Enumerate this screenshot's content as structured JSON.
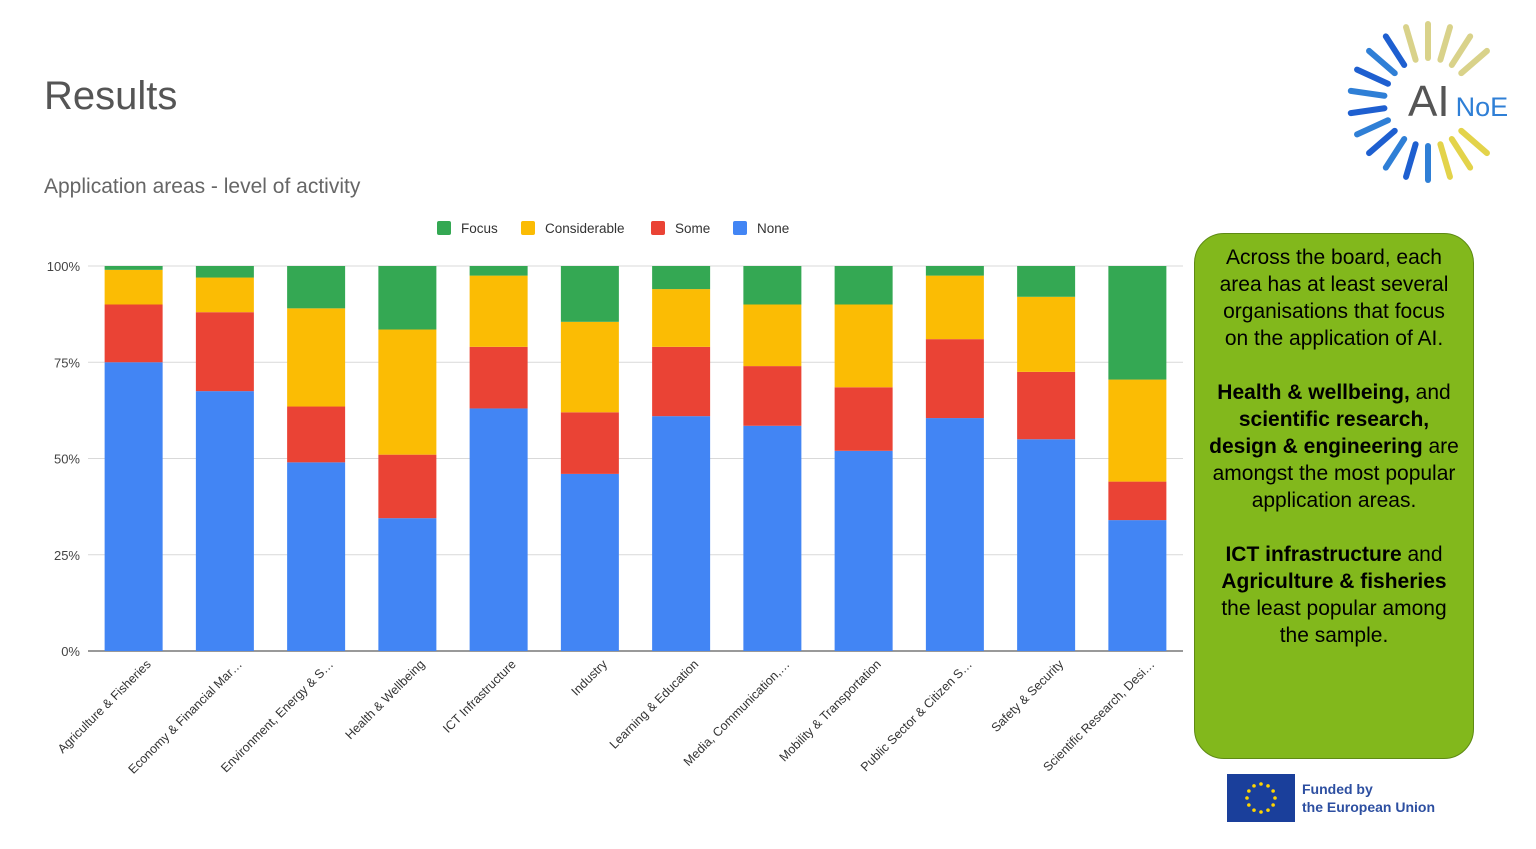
{
  "page": {
    "title": "Results"
  },
  "logo": {
    "main": "AI",
    "sub": "NoE"
  },
  "chart_data": {
    "type": "bar",
    "stacked": true,
    "title": "Application areas - level of activity",
    "legend_position": "top",
    "categories": [
      "Agriculture & Fisheries",
      "Economy & Financial Mar…",
      "Environment, Energy & S…",
      "Health & Wellbeing",
      "ICT Infrastructure",
      "Industry",
      "Learning & Education",
      "Media, Communication,…",
      "Mobility & Transportation",
      "Public Sector & Citizen S…",
      "Safety & Security",
      "Scientific Research, Desi…"
    ],
    "series": [
      {
        "name": "None",
        "color": "#4285f4",
        "values": [
          75,
          67.5,
          49,
          34.5,
          63,
          46,
          61,
          58.5,
          52,
          60.5,
          55,
          34
        ]
      },
      {
        "name": "Some",
        "color": "#ea4335",
        "values": [
          15,
          20.5,
          14.5,
          16.5,
          16,
          16,
          18,
          15.5,
          16.5,
          20.5,
          17.5,
          10
        ]
      },
      {
        "name": "Considerable",
        "color": "#fbbc04",
        "values": [
          9,
          9,
          25.5,
          32.5,
          18.5,
          23.5,
          15,
          16,
          21.5,
          16.5,
          19.5,
          26.5
        ]
      },
      {
        "name": "Focus",
        "color": "#34a853",
        "values": [
          1,
          3,
          11,
          16.5,
          2.5,
          14.5,
          6,
          10,
          10,
          2.5,
          8,
          29.5
        ]
      }
    ],
    "legend_order": [
      "Focus",
      "Considerable",
      "Some",
      "None"
    ],
    "y_ticks": [
      "0%",
      "25%",
      "50%",
      "75%",
      "100%"
    ],
    "ylim": [
      0,
      100
    ],
    "grid": true
  },
  "callout": {
    "p1": "Across the board, each area has at least several organisations that focus on the application of AI.",
    "p2_bold1": "Health & wellbeing,",
    "p2_text1": " and ",
    "p2_bold2": "scientific research, design & engineering",
    "p2_text2": " are amongst the most popular application areas.",
    "p3_bold1": "ICT infrastructure",
    "p3_text1": " and ",
    "p3_bold2": "Agriculture & fisheries",
    "p3_text2": " the least popular among the sample."
  },
  "eu_badge": {
    "line1": "Funded by",
    "line2": "the European Union"
  },
  "colors": {
    "callout_bg": "#82b81c",
    "eu_blue": "#1a3f9b",
    "eu_star": "#ffd500"
  }
}
